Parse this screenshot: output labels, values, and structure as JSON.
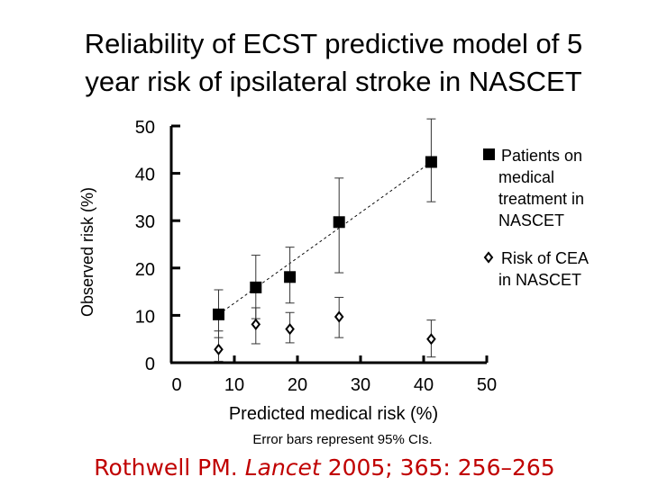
{
  "title": {
    "line1": "Reliability of ECST predictive model of 5",
    "line2": "year risk of ipsilateral stroke in NASCET"
  },
  "chart_data": {
    "type": "scatter",
    "title": "Reliability of ECST predictive model of 5 year risk of ipsilateral stroke in NASCET",
    "xlabel": "Predicted medical risk (%)",
    "ylabel": "Observed risk (%)",
    "xlim": [
      0,
      50
    ],
    "ylim": [
      0,
      50
    ],
    "x_ticks": [
      "0",
      "10",
      "20",
      "30",
      "40",
      "50"
    ],
    "y_ticks": [
      "0",
      "10",
      "20",
      "30",
      "40",
      "50"
    ],
    "legend_position": "right",
    "series": [
      {
        "name": "Patients on medical treatment in NASCET",
        "legend_lines": [
          "Patients on",
          "medical",
          "treatment in",
          "NASCET"
        ],
        "marker": "filled-square",
        "points": [
          {
            "x": 7.5,
            "y": 10.2,
            "lo": 5.3,
            "hi": 15.4
          },
          {
            "x": 13.4,
            "y": 15.9,
            "lo": 9.3,
            "hi": 22.7
          },
          {
            "x": 18.8,
            "y": 18.1,
            "lo": 12.6,
            "hi": 24.4
          },
          {
            "x": 26.6,
            "y": 29.7,
            "lo": 19.0,
            "hi": 39.0
          },
          {
            "x": 41.2,
            "y": 42.4,
            "lo": 34.0,
            "hi": 51.5
          }
        ]
      },
      {
        "name": "Risk of CEA in NASCET",
        "legend_lines": [
          "Risk of CEA",
          "in NASCET"
        ],
        "marker": "open-diamond",
        "points": [
          {
            "x": 7.5,
            "y": 2.8,
            "lo": 0.3,
            "hi": 6.7
          },
          {
            "x": 13.4,
            "y": 8.1,
            "lo": 4.0,
            "hi": 11.6
          },
          {
            "x": 18.8,
            "y": 7.1,
            "lo": 4.2,
            "hi": 10.6
          },
          {
            "x": 26.6,
            "y": 9.7,
            "lo": 5.3,
            "hi": 13.8
          },
          {
            "x": 41.2,
            "y": 5.0,
            "lo": 1.2,
            "hi": 9.0
          }
        ]
      }
    ],
    "trend_line": {
      "from": [
        7.5,
        10.2
      ],
      "to": [
        41.2,
        42.4
      ]
    }
  },
  "footnote": "Error bars represent 95% CIs.",
  "citation": {
    "author": "Rothwell PM.",
    "journal": "Lancet",
    "details": "2005; 365: 256–265"
  }
}
